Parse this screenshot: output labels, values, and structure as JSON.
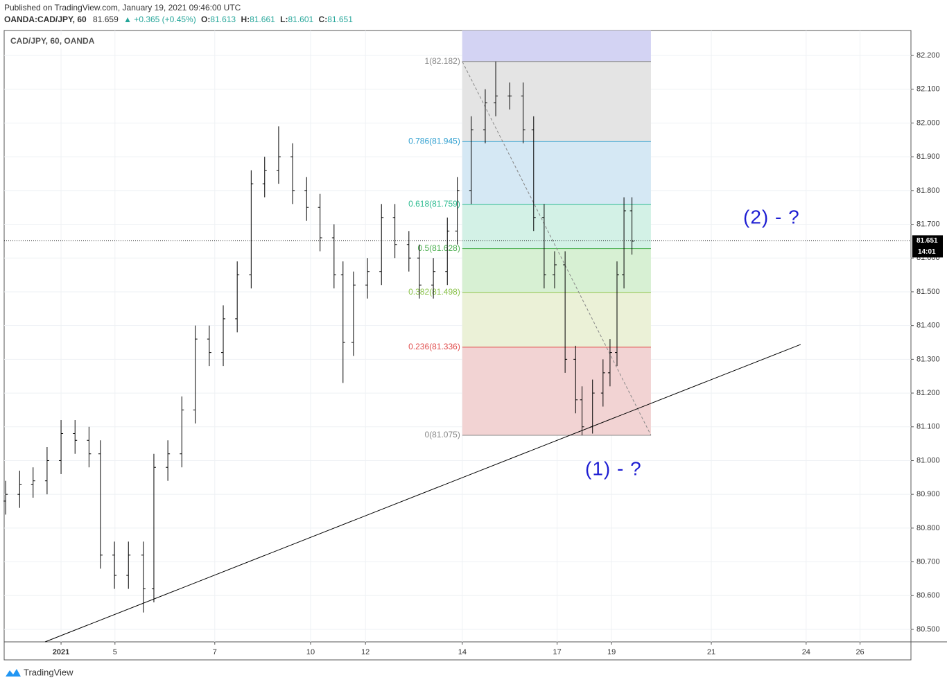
{
  "header": {
    "published": "Published on TradingView.com, January 19, 2021 09:46:00 UTC",
    "symbol": "OANDA:CAD/JPY, 60",
    "price": "81.659",
    "change": "▲ +0.365 (+0.45%)",
    "ohlc": [
      {
        "label": "O:",
        "value": "81.613"
      },
      {
        "label": "H:",
        "value": "81.661"
      },
      {
        "label": "L:",
        "value": "81.601"
      },
      {
        "label": "C:",
        "value": "81.651"
      }
    ]
  },
  "chart_data": {
    "type": "ohlc",
    "title": "CAD/JPY, 60, OANDA",
    "color": "#000000",
    "x": [
      -1.11,
      -0.83,
      -0.56,
      -0.28,
      0,
      0.28,
      0.56,
      0.79,
      1.07,
      1.35,
      1.65,
      1.86,
      2.14,
      2.42,
      2.69,
      2.97,
      3.25,
      3.53,
      3.81,
      4.08,
      4.36,
      4.64,
      4.92,
      5.19,
      5.47,
      5.65,
      5.86,
      6.14,
      6.42,
      6.69,
      6.97,
      7.18,
      7.46,
      7.74,
      7.94,
      8.22,
      8.5,
      8.71,
      8.99,
      9.26,
      9.47,
      9.68,
      9.89,
      10.1,
      10.31,
      10.44,
      10.65,
      10.86,
      11,
      11.14,
      11.28,
      11.44
    ],
    "open": [
      80.88,
      80.9,
      80.93,
      80.94,
      81.0,
      81.08,
      81.06,
      81.02,
      80.72,
      80.66,
      80.72,
      80.62,
      80.98,
      81.02,
      81.15,
      81.36,
      81.32,
      81.42,
      81.55,
      81.82,
      81.86,
      81.9,
      81.8,
      81.75,
      81.66,
      81.55,
      81.35,
      81.52,
      81.56,
      81.72,
      81.64,
      81.6,
      81.52,
      81.56,
      81.68,
      81.8,
      81.98,
      82.06,
      82.08,
      82.08,
      81.98,
      81.72,
      81.55,
      81.58,
      81.3,
      81.18,
      81.1,
      81.2,
      81.26,
      81.32,
      81.55,
      81.74
    ],
    "high": [
      80.94,
      80.97,
      80.98,
      81.04,
      81.12,
      81.12,
      81.1,
      81.06,
      80.76,
      80.76,
      80.76,
      81.02,
      81.06,
      81.19,
      81.4,
      81.4,
      81.46,
      81.59,
      81.86,
      81.9,
      81.99,
      81.94,
      81.84,
      81.79,
      81.7,
      81.59,
      81.56,
      81.6,
      81.76,
      81.76,
      81.68,
      81.64,
      81.6,
      81.72,
      81.84,
      82.02,
      82.1,
      82.182,
      82.12,
      82.12,
      82.02,
      81.76,
      81.62,
      81.62,
      81.34,
      81.22,
      81.24,
      81.3,
      81.36,
      81.59,
      81.78,
      81.78
    ],
    "low": [
      80.84,
      80.86,
      80.89,
      80.9,
      80.96,
      81.02,
      80.98,
      80.68,
      80.62,
      80.62,
      80.55,
      80.58,
      80.94,
      80.98,
      81.11,
      81.28,
      81.28,
      81.38,
      81.51,
      81.78,
      81.82,
      81.76,
      81.71,
      81.62,
      81.51,
      81.23,
      81.31,
      81.48,
      81.52,
      81.6,
      81.56,
      81.48,
      81.48,
      81.52,
      81.64,
      81.76,
      81.94,
      82.02,
      82.04,
      81.94,
      81.68,
      81.51,
      81.51,
      81.26,
      81.14,
      81.075,
      81.08,
      81.16,
      81.22,
      81.28,
      81.51,
      81.61
    ],
    "close": [
      80.9,
      80.93,
      80.94,
      81.0,
      81.08,
      81.06,
      81.02,
      80.72,
      80.66,
      80.72,
      80.62,
      80.98,
      81.02,
      81.15,
      81.36,
      81.32,
      81.42,
      81.55,
      81.82,
      81.86,
      81.9,
      81.8,
      81.75,
      81.66,
      81.55,
      81.35,
      81.52,
      81.56,
      81.72,
      81.64,
      81.6,
      81.52,
      81.56,
      81.68,
      81.8,
      81.98,
      82.06,
      82.08,
      82.08,
      81.98,
      81.72,
      81.55,
      81.58,
      81.3,
      81.18,
      81.1,
      81.2,
      81.26,
      81.32,
      81.55,
      81.74,
      81.65
    ],
    "xlim": [
      -1.14,
      17.03
    ],
    "xticks": [
      {
        "value": 0,
        "label": "2021"
      },
      {
        "value": 1.08,
        "label": "5"
      },
      {
        "value": 3.08,
        "label": "7"
      },
      {
        "value": 5.0,
        "label": "10"
      },
      {
        "value": 6.1,
        "label": "12"
      },
      {
        "value": 8.04,
        "label": "14"
      },
      {
        "value": 9.94,
        "label": "17"
      },
      {
        "value": 11.03,
        "label": "19"
      },
      {
        "value": 13.03,
        "label": "21"
      },
      {
        "value": 14.93,
        "label": "24"
      },
      {
        "value": 16.01,
        "label": "26"
      }
    ],
    "ylim": [
      80.463,
      82.274
    ],
    "yticks": [
      {
        "value": 80.5,
        "label": "80.500"
      },
      {
        "value": 80.6,
        "label": "80.600"
      },
      {
        "value": 80.7,
        "label": "80.700"
      },
      {
        "value": 80.8,
        "label": "80.800"
      },
      {
        "value": 80.9,
        "label": "80.900"
      },
      {
        "value": 81.0,
        "label": "81.000"
      },
      {
        "value": 81.1,
        "label": "81.100"
      },
      {
        "value": 81.2,
        "label": "81.200"
      },
      {
        "value": 81.3,
        "label": "81.300"
      },
      {
        "value": 81.4,
        "label": "81.400"
      },
      {
        "value": 81.5,
        "label": "81.500"
      },
      {
        "value": 81.6,
        "label": "81.600"
      },
      {
        "value": 81.7,
        "label": "81.700"
      },
      {
        "value": 81.8,
        "label": "81.800"
      },
      {
        "value": 81.9,
        "label": "81.900"
      },
      {
        "value": 82.0,
        "label": "82.000"
      },
      {
        "value": 82.1,
        "label": "82.100"
      },
      {
        "value": 82.2,
        "label": "82.200"
      }
    ],
    "grid": true,
    "last_price": {
      "value": 81.651,
      "time": "14:01"
    },
    "fib": {
      "x": [
        8.04,
        11.82
      ],
      "extension_color": "#d3d3f3",
      "levels": [
        {
          "value": 82.182,
          "label": "1(82.182)",
          "color": "#888888",
          "fill": "#e4e4e4"
        },
        {
          "value": 81.945,
          "label": "0.786(81.945)",
          "color": "#2f9fd0",
          "fill": "#d5e8f4"
        },
        {
          "value": 81.759,
          "label": "0.618(81.759)",
          "color": "#2bba8f",
          "fill": "#d3f1e6"
        },
        {
          "value": 81.628,
          "label": "0.5(81.628)",
          "color": "#4caf50",
          "fill": "#d7f0d3"
        },
        {
          "value": 81.498,
          "label": "0.382(81.498)",
          "color": "#8bc34a",
          "fill": "#ebf1d7"
        },
        {
          "value": 81.336,
          "label": "0.236(81.336)",
          "color": "#e04c4c",
          "fill": "#f2d3d3"
        },
        {
          "value": 81.075,
          "label": "0(81.075)",
          "color": "#888888"
        }
      ]
    },
    "trend_line": {
      "x": [
        -0.32,
        14.82
      ],
      "y": [
        80.463,
        81.344
      ]
    },
    "annotations": [
      "(1) - ?",
      "(2) - ?"
    ]
  },
  "footer": {
    "brand": "TradingView"
  }
}
